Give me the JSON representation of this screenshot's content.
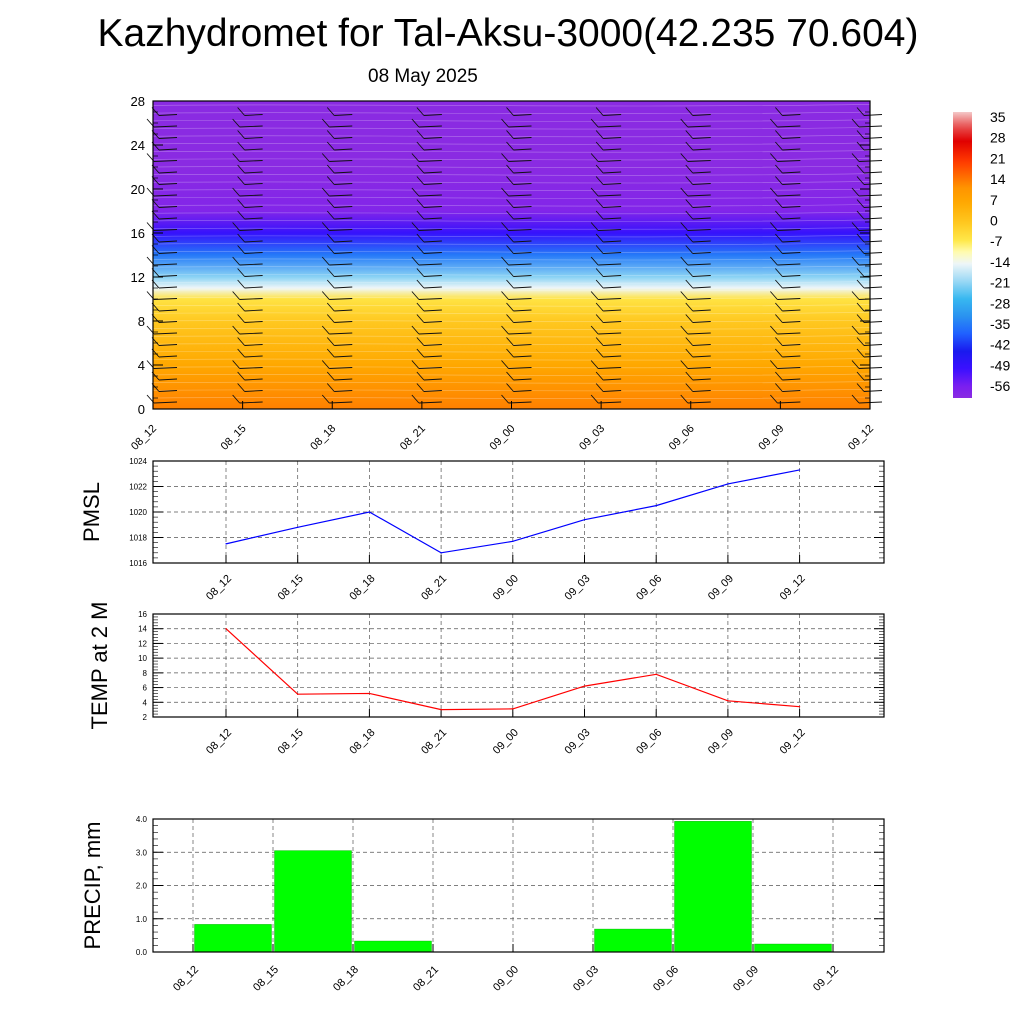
{
  "title": "Kazhydromet for Tal-Aksu-3000(42.235 70.604)",
  "subtitle": "08 May 2025",
  "chart_data": [
    {
      "type": "heatmap",
      "ylim": [
        0,
        28
      ],
      "yticks": [
        "0",
        "4",
        "8",
        "12",
        "16",
        "20",
        "24",
        "28"
      ],
      "xticks": [
        "08_12",
        "08_15",
        "08_18",
        "08_21",
        "09_00",
        "09_03",
        "09_06",
        "09_09",
        "09_12"
      ],
      "colorbar": {
        "labels": [
          "35",
          "28",
          "21",
          "14",
          "7",
          "0",
          "-7",
          "-14",
          "-21",
          "-28",
          "-35",
          "-42",
          "-49",
          "-56"
        ],
        "range": [
          -60,
          38
        ]
      },
      "temperature_profile": [
        {
          "height": 0,
          "value": 14
        },
        {
          "height": 4,
          "value": 7
        },
        {
          "height": 8,
          "value": 0
        },
        {
          "height": 10,
          "value": -5
        },
        {
          "height": 11,
          "value": -14
        },
        {
          "height": 12,
          "value": -21
        },
        {
          "height": 14,
          "value": -35
        },
        {
          "height": 16,
          "value": -49
        },
        {
          "height": 18,
          "value": -58
        },
        {
          "height": 22,
          "value": -60
        },
        {
          "height": 28,
          "value": -60
        }
      ],
      "wind_barbs_columns": [
        "08_12",
        "08_15",
        "08_18",
        "08_21",
        "09_00",
        "09_03",
        "09_06",
        "09_09",
        "09_12"
      ],
      "colors": {
        "cold": "#7b22f0",
        "warm": "#f59a00"
      }
    },
    {
      "type": "line",
      "ylabel": "PMSL",
      "ylim": [
        1016,
        1024
      ],
      "yticks": [
        "1016",
        "1018",
        "1020",
        "1022",
        "1024"
      ],
      "categories": [
        "08_12",
        "08_15",
        "08_18",
        "08_21",
        "09_00",
        "09_03",
        "09_06",
        "09_09",
        "09_12"
      ],
      "values": [
        1017.5,
        1018.8,
        1020.0,
        1016.8,
        1017.7,
        1019.4,
        1020.5,
        1022.2,
        1023.3
      ],
      "color": "#0000ff"
    },
    {
      "type": "line",
      "ylabel": "TEMP at 2 M",
      "ylim": [
        2,
        16
      ],
      "yticks": [
        "2",
        "4",
        "6",
        "8",
        "10",
        "12",
        "14",
        "16"
      ],
      "categories": [
        "08_12",
        "08_15",
        "08_18",
        "08_21",
        "09_00",
        "09_03",
        "09_06",
        "09_09",
        "09_12"
      ],
      "values": [
        14.0,
        5.1,
        5.2,
        3.0,
        3.1,
        6.2,
        7.8,
        4.2,
        3.4
      ],
      "color": "#ff0000"
    },
    {
      "type": "bar",
      "ylabel": "PRECIP, mm",
      "ylim": [
        0,
        4
      ],
      "yticks": [
        "0.0",
        "1.0",
        "2.0",
        "3.0",
        "4.0"
      ],
      "categories": [
        "08_12",
        "08_15",
        "08_18",
        "08_21",
        "09_00",
        "09_03",
        "09_06",
        "09_09",
        "09_12"
      ],
      "values": [
        0,
        0.83,
        3.05,
        0.33,
        0,
        0,
        0.69,
        3.93,
        0.24
      ],
      "color": "#00ff00"
    }
  ]
}
